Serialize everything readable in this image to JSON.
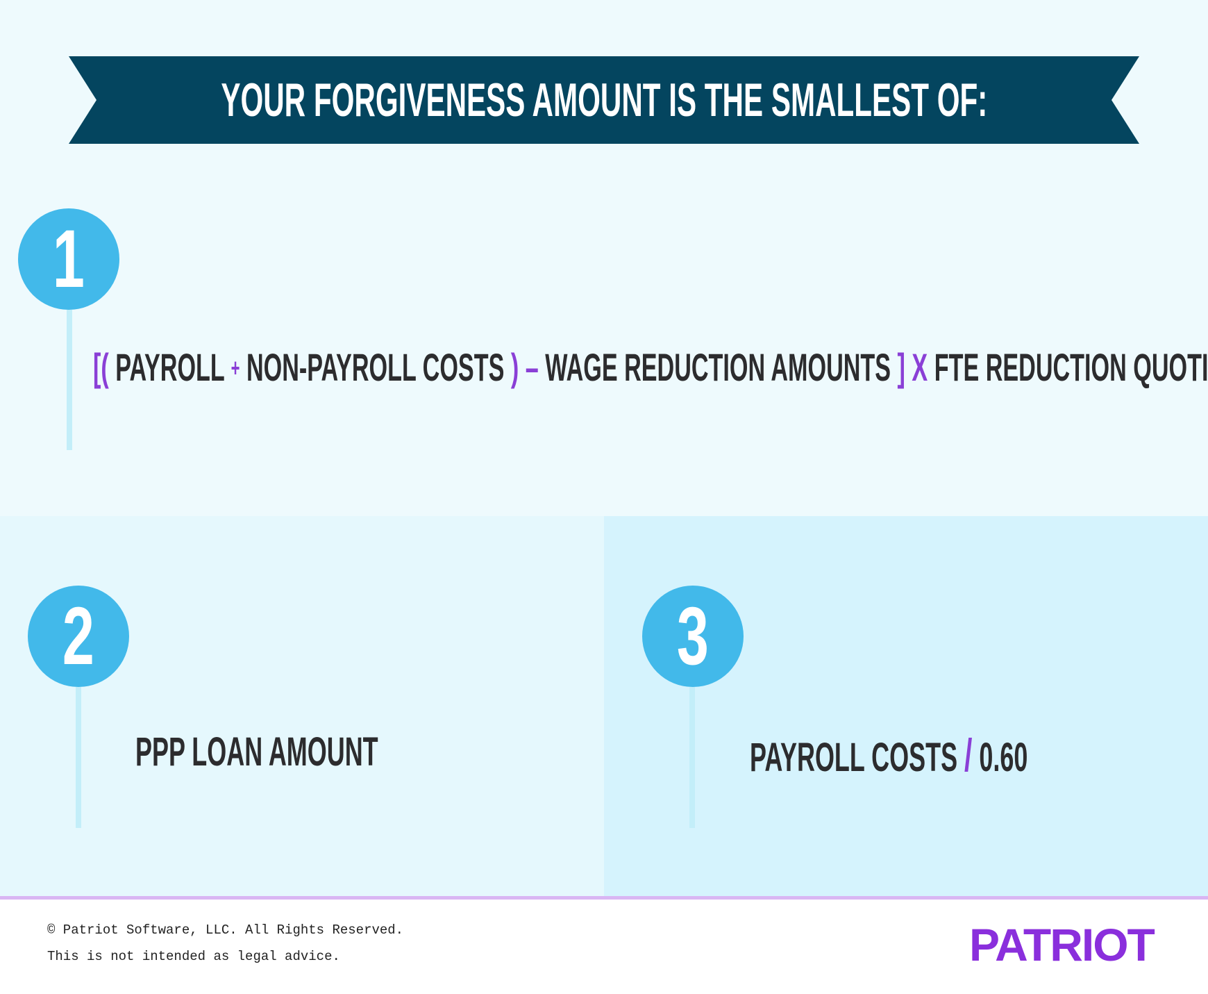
{
  "banner": {
    "title": "YOUR FORGIVENESS AMOUNT IS THE SMALLEST OF:"
  },
  "options": [
    {
      "number": "1",
      "formula": {
        "open_brackets": "[(",
        "term_1": "PAYROLL",
        "plus": "+",
        "term_2": "NON-PAYROLL COSTS",
        "close_paren": ")",
        "minus": "–",
        "term_3": "WAGE REDUCTION AMOUNTS",
        "close_bracket": "]",
        "times": "X",
        "term_4": "FTE REDUCTION QUOTIENT"
      }
    },
    {
      "number": "2",
      "text": "PPP LOAN AMOUNT"
    },
    {
      "number": "3",
      "term_1": "PAYROLL COSTS",
      "divide": "/",
      "term_2": "0.60"
    }
  ],
  "footer": {
    "copyright": "© Patriot Software, LLC. All Rights Reserved.",
    "disclaimer": "This is not intended as legal advice.",
    "logo": "PATRIOT"
  },
  "colors": {
    "banner": "#04455f",
    "badge": "#42b9ea",
    "accent": "#8a3fd6",
    "text": "#2c2c2e",
    "logo": "#8a2fdc"
  }
}
